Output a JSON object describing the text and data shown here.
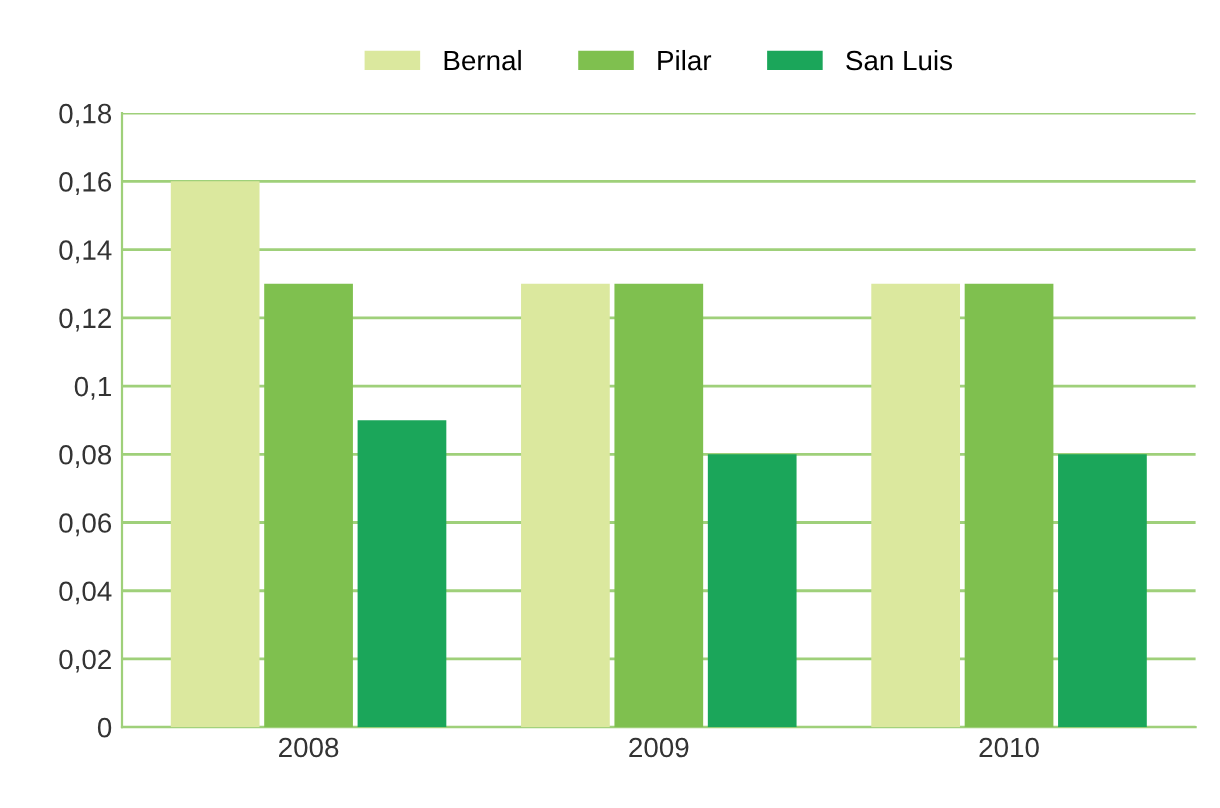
{
  "chart_data": {
    "type": "bar",
    "categories": [
      "2008",
      "2009",
      "2010"
    ],
    "series": [
      {
        "name": "Bernal",
        "color": "#dbe89e",
        "values": [
          0.16,
          0.13,
          0.13
        ]
      },
      {
        "name": "Pilar",
        "color": "#7fc04f",
        "values": [
          0.13,
          0.13,
          0.13
        ]
      },
      {
        "name": "San Luis",
        "color": "#1ba65a",
        "values": [
          0.09,
          0.08,
          0.08
        ]
      }
    ],
    "ylim": [
      0,
      0.18
    ],
    "yticks": [
      {
        "value": 0,
        "label": "0"
      },
      {
        "value": 0.02,
        "label": "0,02"
      },
      {
        "value": 0.04,
        "label": "0,04"
      },
      {
        "value": 0.06,
        "label": "0,06"
      },
      {
        "value": 0.08,
        "label": "0,08"
      },
      {
        "value": 0.1,
        "label": "0,1"
      },
      {
        "value": 0.12,
        "label": "0,12"
      },
      {
        "value": 0.14,
        "label": "0,14"
      },
      {
        "value": 0.16,
        "label": "0,16"
      },
      {
        "value": 0.18,
        "label": "0,18"
      }
    ],
    "grid": "y",
    "legend": "top"
  }
}
